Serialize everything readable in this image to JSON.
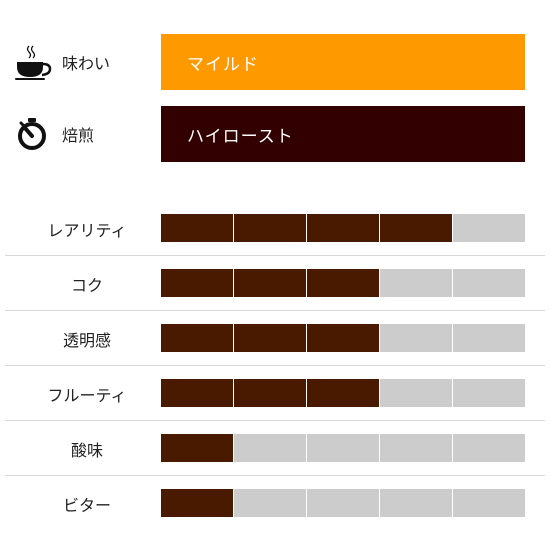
{
  "colors": {
    "filled": "#4a1a00",
    "empty": "#cccccc",
    "taste_box": "#ff9900",
    "roast_box": "#330000",
    "box_text": "#ffffff"
  },
  "profile": {
    "taste": {
      "label": "味わい",
      "value": "マイルド",
      "icon": "coffee-cup-icon"
    },
    "roast": {
      "label": "焙煎",
      "value": "ハイロースト",
      "icon": "timer-icon"
    }
  },
  "ratings": [
    {
      "label": "レアリティ",
      "level": 4,
      "max": 5
    },
    {
      "label": "コク",
      "level": 3,
      "max": 5
    },
    {
      "label": "透明感",
      "level": 3,
      "max": 5
    },
    {
      "label": "フルーティ",
      "level": 3,
      "max": 5
    },
    {
      "label": "酸味",
      "level": 1,
      "max": 5
    },
    {
      "label": "ビター",
      "level": 1,
      "max": 5
    }
  ]
}
